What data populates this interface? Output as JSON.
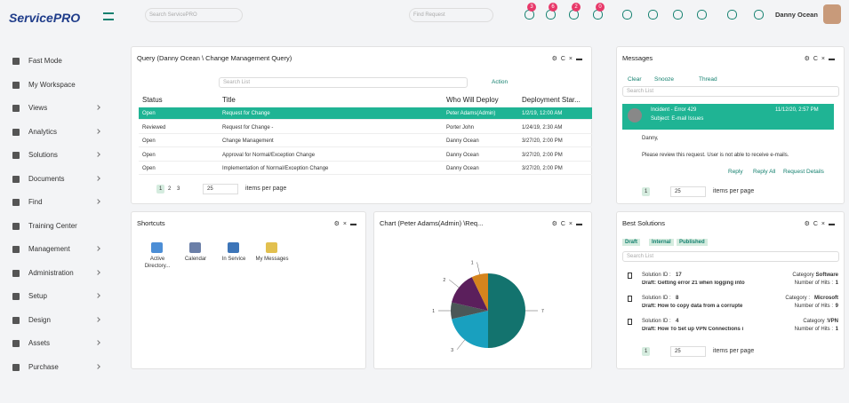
{
  "header": {
    "logo": "ServicePRO",
    "search": "Search ServicePRO",
    "find": "Find Request",
    "badges": [
      3,
      6,
      2,
      0
    ],
    "user": "Danny Ocean"
  },
  "sidebar": [
    "Fast Mode",
    "My Workspace",
    "Views",
    "Analytics",
    "Solutions",
    "Documents",
    "Find",
    "Training Center",
    "Management",
    "Administration",
    "Setup",
    "Design",
    "Assets",
    "Purchase"
  ],
  "query": {
    "title": "Query (Danny Ocean \\ Change Management Query)",
    "search": "Search List",
    "action": "Action",
    "columns": [
      "Status",
      "Title",
      "Who Will Deploy",
      "Deployment Star..."
    ],
    "rows": [
      [
        "Open",
        "Request for Change",
        "Peter Adams(Admin)",
        "1/2/19, 12:00 AM"
      ],
      [
        "Reviewed",
        "Request for Change -",
        "Porter John",
        "1/24/19, 2:30 AM"
      ],
      [
        "Open",
        "Change Management",
        "Danny Ocean",
        "3/27/20, 2:00 PM"
      ],
      [
        "Open",
        "Approval for Normal/Exception Change",
        "Danny Ocean",
        "3/27/20, 2:00 PM"
      ],
      [
        "Open",
        "Implementation of Normal/Exception Change",
        "Danny Ocean",
        "3/27/20, 2:00 PM"
      ]
    ],
    "pages": [
      1,
      2,
      3
    ],
    "page_size": 25,
    "per_page": "items per page"
  },
  "shortcuts": {
    "title": "Shortcuts",
    "items": [
      "Active Directory...",
      "Calendar",
      "In Service",
      "My Messages"
    ]
  },
  "chart": {
    "title": "Chart (Peter Adams(Admin) \\Req...",
    "type": "pie",
    "values": [
      7,
      3,
      1,
      2,
      1
    ],
    "colors": [
      "#13736e",
      "#19a0bf",
      "#4b5757",
      "#5b1f5c",
      "#d5841d"
    ]
  },
  "messages": {
    "title": "Messages",
    "tools": [
      "Clear",
      "Snooze",
      "Thread"
    ],
    "search": "Search List",
    "incident": "Incident - Error 429",
    "date": "11/12/20, 2:57 PM",
    "subject": "Subject: E-mail Issues",
    "greeting": "Danny,",
    "body": "Please review this request. User is not able to receive e-mails.",
    "actions": [
      "Reply",
      "Reply All",
      "Request Details"
    ],
    "page": 1,
    "page_size": 25,
    "per_page": "items per page"
  },
  "solutions": {
    "title": "Best Solutions",
    "tabs": [
      "Draft",
      "Internal",
      "Published"
    ],
    "search": "Search List",
    "items": [
      {
        "id_label": "Solution ID :",
        "id": "17",
        "draft": "Draft: Getting error 21 when logging into",
        "cat_label": "Category :",
        "cat": "Software",
        "hits_label": "Number of Hits :",
        "hits": 1
      },
      {
        "id_label": "Solution ID :",
        "id": "8",
        "draft": "Draft: How to copy data from a corrupte",
        "cat_label": "Category :",
        "cat": "Microsoft",
        "hits_label": "Number of Hits :",
        "hits": 9
      },
      {
        "id_label": "Solution ID :",
        "id": "4",
        "draft": "Draft: How To Set up VPN Connections i",
        "cat_label": "Category :",
        "cat": "VPN",
        "hits_label": "Number of Hits :",
        "hits": 1
      }
    ],
    "page": 1,
    "page_size": 25,
    "per_page": "items per page"
  }
}
